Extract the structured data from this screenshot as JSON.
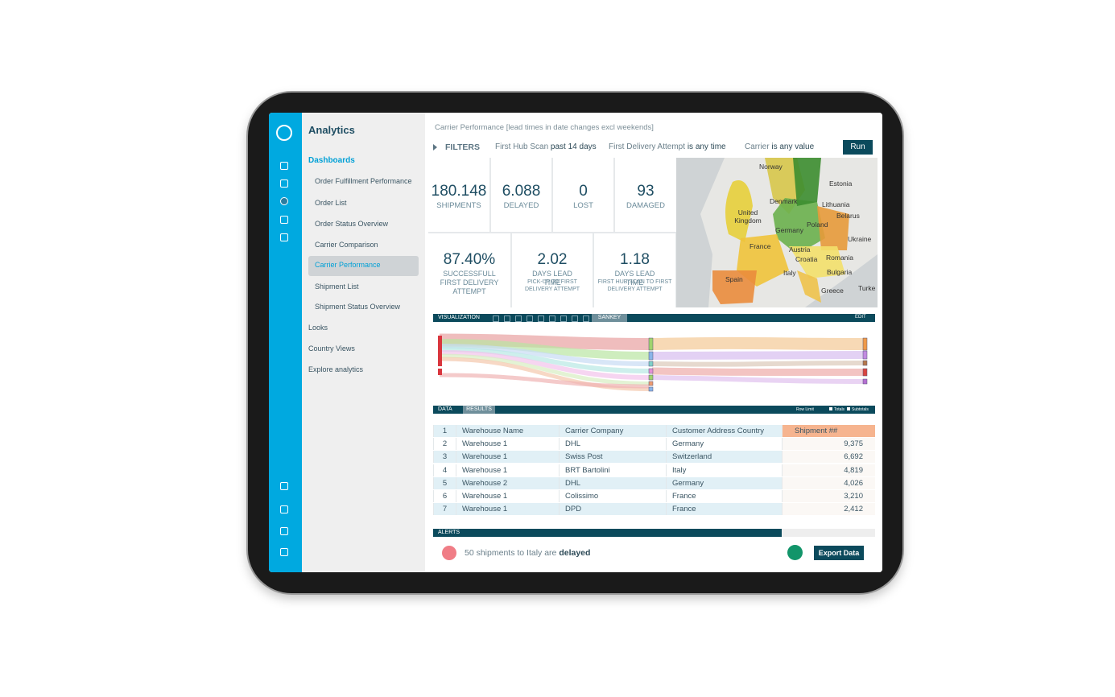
{
  "app": {
    "title": "Analytics"
  },
  "nav": {
    "section": "Dashboards",
    "active": 4,
    "items": [
      "Order Fulfillment Performance",
      "Order List",
      "Order Status Overview",
      "Carrier Comparison",
      "Carrier Performance",
      "Shipment List",
      "Shipment Status Overview"
    ],
    "other": [
      "Looks",
      "Country Views",
      "Explore analytics"
    ]
  },
  "header": {
    "breadcrumb": "Carrier Performance [lead times in date changes excl weekends]",
    "filters_label": "FILTERS",
    "filters": [
      {
        "name": "First Hub Scan",
        "value": "past 14 days"
      },
      {
        "name": "First Delivery Attempt",
        "value": "is any time"
      },
      {
        "name": "Carrier",
        "value": "is any value"
      }
    ],
    "run": "Run"
  },
  "kpis": [
    {
      "value": "180.148",
      "label": "SHIPMENTS"
    },
    {
      "value": "6.088",
      "label": "DELAYED"
    },
    {
      "value": "0",
      "label": "LOST"
    },
    {
      "value": "93",
      "label": "DAMAGED"
    }
  ],
  "kpis2": [
    {
      "value": "87.40%",
      "label": "SUCCESSFULL FIRST DELIVERY ATTEMPT"
    },
    {
      "value": "2.02",
      "label": "DAYS LEAD TIME",
      "sub": "PICK-UP TO FIRST DELIVERY ATTEMPT"
    },
    {
      "value": "1.18",
      "label": "DAYS LEAD TIME",
      "sub": "FIRST HUB SCAN TO FIRST DELIVERY ATTEMPT"
    }
  ],
  "map": {
    "labels": [
      "Norway",
      "Estonia",
      "Denmark",
      "Lithuania",
      "United Kingdom",
      "Belarus",
      "Poland",
      "Germany",
      "Ukraine",
      "France",
      "Austria",
      "Romania",
      "Croatia",
      "Bulgaria",
      "Italy",
      "Spain",
      "Greece",
      "Turke"
    ]
  },
  "visualization": {
    "label": "VISUALIZATION",
    "tab": "SANKEY",
    "edit": "EDIT"
  },
  "data_panel": {
    "label": "DATA",
    "tab": "RESULTS",
    "row_limit": "Row Limit",
    "totals": "Totals",
    "subtotals": "Subtotals"
  },
  "table": {
    "header": [
      "1",
      "Warehouse Name",
      "Carrier Company",
      "Customer Address Country",
      "Shipment ##"
    ],
    "rows": [
      [
        "2",
        "Warehouse 1",
        "DHL",
        "Germany",
        "9,375"
      ],
      [
        "3",
        "Warehouse 1",
        "Swiss Post",
        "Switzerland",
        "6,692"
      ],
      [
        "4",
        "Warehouse 1",
        "BRT Bartolini",
        "Italy",
        "4,819"
      ],
      [
        "5",
        "Warehouse 2",
        "DHL",
        "Germany",
        "4,026"
      ],
      [
        "6",
        "Warehouse 1",
        "Colissimo",
        "France",
        "3,210"
      ],
      [
        "7",
        "Warehouse 1",
        "DPD",
        "France",
        "2,412"
      ]
    ]
  },
  "alerts": {
    "label": "ALERTS",
    "message": "50 shipments to Italy are",
    "emphasis": "delayed",
    "export": "Export Data"
  }
}
